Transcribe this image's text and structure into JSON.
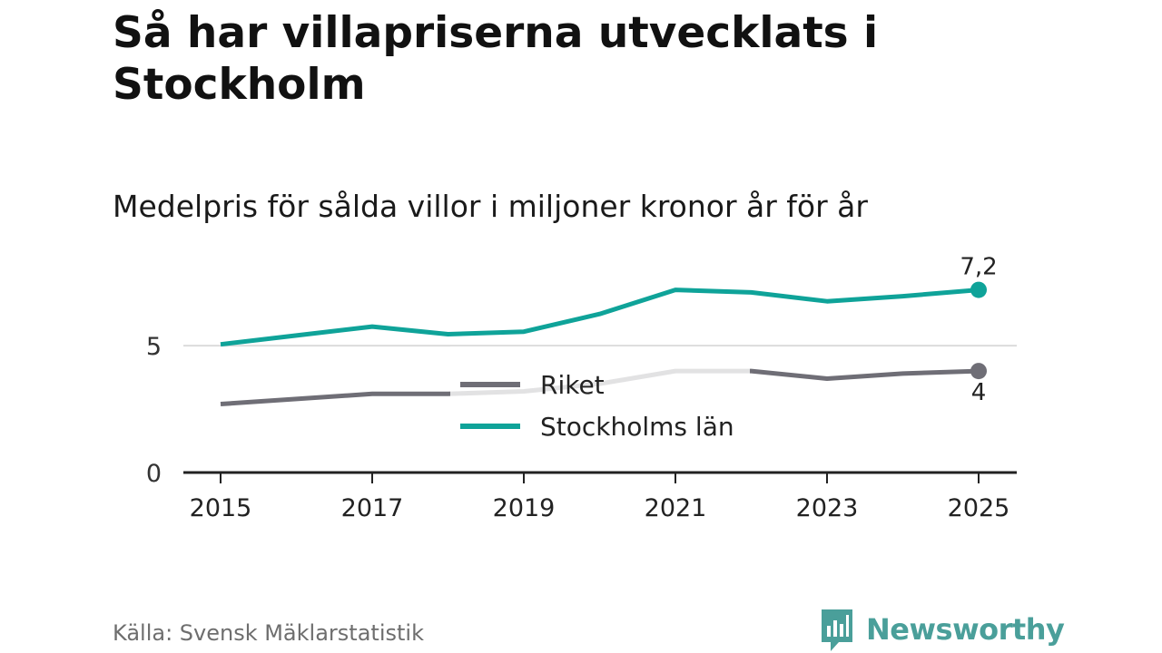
{
  "title": "Så har villapriserna utvecklats i Stockholm",
  "subtitle": "Medelpris för sålda villor i miljoner kronor år för år",
  "source": "Källa: Svensk Mäklarstatistik",
  "brand": {
    "name": "Newsworthy",
    "color": "#4a9f9a",
    "icon": "newsworthy-logo-icon"
  },
  "chart_data": {
    "type": "line",
    "x": [
      2015,
      2016,
      2017,
      2018,
      2019,
      2020,
      2021,
      2022,
      2023,
      2024,
      2025
    ],
    "x_tick_labels": [
      "2015",
      "2017",
      "2019",
      "2021",
      "2023",
      "2025"
    ],
    "y_tick_labels": [
      "0",
      "5"
    ],
    "ylim": [
      0,
      7.9
    ],
    "grid": "horizontal at 5",
    "legend_placement": "center",
    "series": [
      {
        "name": "Riket",
        "color": "#6f6e76",
        "values": [
          2.7,
          2.9,
          3.1,
          3.1,
          3.2,
          3.5,
          4.0,
          4.0,
          3.7,
          3.9,
          4.0
        ],
        "end_label": "4"
      },
      {
        "name": "Stockholms län",
        "color": "#0fa399",
        "values": [
          5.05,
          5.4,
          5.75,
          5.45,
          5.55,
          6.25,
          7.2,
          7.1,
          6.75,
          6.95,
          7.2
        ],
        "end_label": "7,2"
      }
    ]
  }
}
